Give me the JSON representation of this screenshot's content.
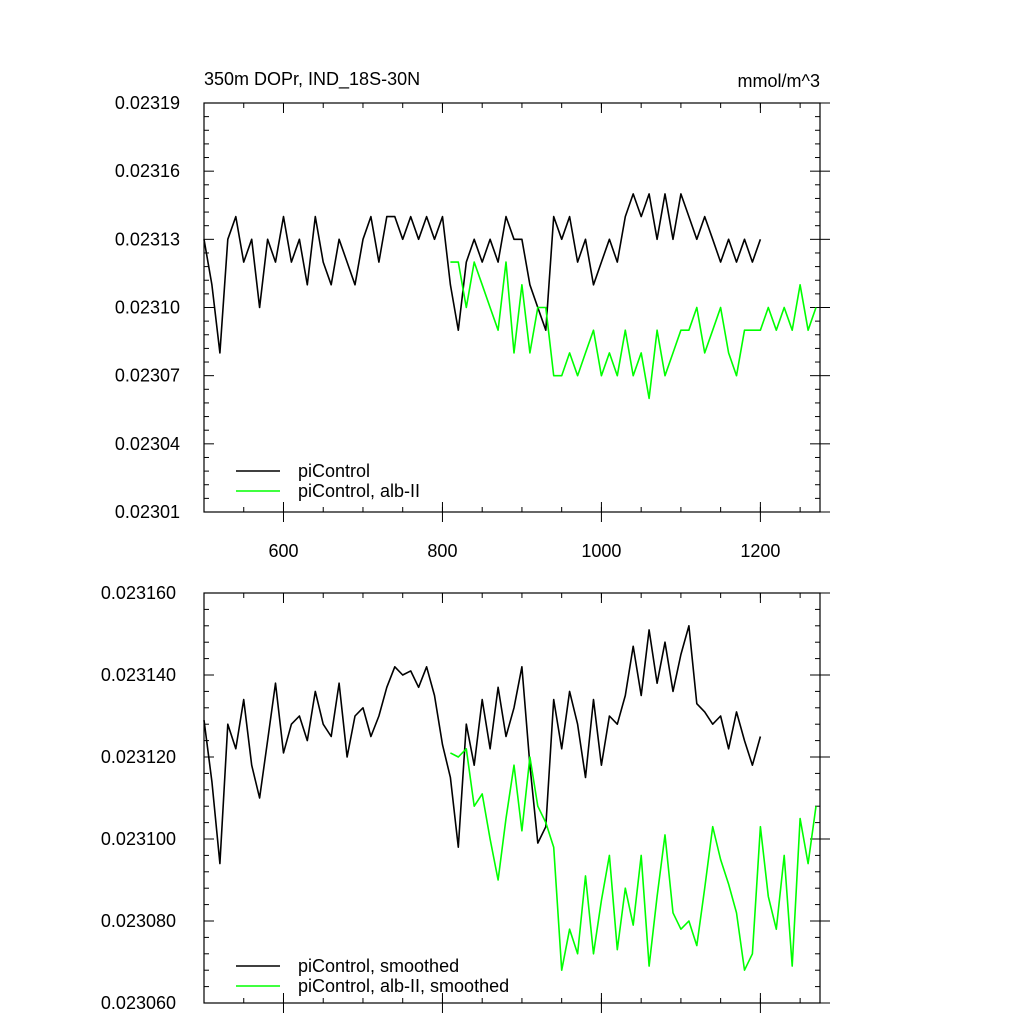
{
  "chart_data": [
    {
      "type": "line",
      "title": "350m DOPr, IND_18S-30N",
      "units": "mmol/m^3",
      "xlim": [
        500,
        1275
      ],
      "ylim": [
        0.02301,
        0.02319
      ],
      "x_ticks": [
        600,
        800,
        1000,
        1200
      ],
      "y_ticks": [
        0.02301,
        0.02304,
        0.02307,
        0.0231,
        0.02313,
        0.02316,
        0.02319
      ],
      "y_tick_labels": [
        "0.02301",
        "0.02304",
        "0.02307",
        "0.02310",
        "0.02313",
        "0.02316",
        "0.02319"
      ],
      "grid": false,
      "legend_position": "bottom-left",
      "series": [
        {
          "name": "piControl",
          "color": "#000000",
          "x": [
            500,
            510,
            520,
            530,
            540,
            550,
            560,
            570,
            580,
            590,
            600,
            610,
            620,
            630,
            640,
            650,
            660,
            670,
            680,
            690,
            700,
            710,
            720,
            730,
            740,
            750,
            760,
            770,
            780,
            790,
            800,
            810,
            820,
            830,
            840,
            850,
            860,
            870,
            880,
            890,
            900,
            910,
            920,
            930,
            940,
            950,
            960,
            970,
            980,
            990,
            1000,
            1010,
            1020,
            1030,
            1040,
            1050,
            1060,
            1070,
            1080,
            1090,
            1100,
            1110,
            1120,
            1130,
            1140,
            1150,
            1160,
            1170,
            1180,
            1190,
            1200
          ],
          "values": [
            0.02313,
            0.02311,
            0.02308,
            0.02313,
            0.02314,
            0.02312,
            0.02313,
            0.0231,
            0.02313,
            0.02312,
            0.02314,
            0.02312,
            0.02313,
            0.02311,
            0.02314,
            0.02312,
            0.02311,
            0.02313,
            0.02312,
            0.02311,
            0.02313,
            0.02314,
            0.02312,
            0.02314,
            0.02314,
            0.02313,
            0.02314,
            0.02313,
            0.02314,
            0.02313,
            0.02314,
            0.02311,
            0.02309,
            0.02312,
            0.02313,
            0.02312,
            0.02313,
            0.02312,
            0.02314,
            0.02313,
            0.02313,
            0.02311,
            0.0231,
            0.02309,
            0.02314,
            0.02313,
            0.02314,
            0.02312,
            0.02313,
            0.02311,
            0.02312,
            0.02313,
            0.02312,
            0.02314,
            0.02315,
            0.02314,
            0.02315,
            0.02313,
            0.02315,
            0.02313,
            0.02315,
            0.02314,
            0.02313,
            0.02314,
            0.02313,
            0.02312,
            0.02313,
            0.02312,
            0.02313,
            0.02312,
            0.02313
          ]
        },
        {
          "name": "piControl, alb-II",
          "color": "#00ff00",
          "x": [
            810,
            820,
            830,
            840,
            850,
            860,
            870,
            880,
            890,
            900,
            910,
            920,
            930,
            940,
            950,
            960,
            970,
            980,
            990,
            1000,
            1010,
            1020,
            1030,
            1040,
            1050,
            1060,
            1070,
            1080,
            1090,
            1100,
            1110,
            1120,
            1130,
            1140,
            1150,
            1160,
            1170,
            1180,
            1190,
            1200,
            1210,
            1220,
            1230,
            1240,
            1250,
            1260,
            1270
          ],
          "values": [
            0.02312,
            0.02312,
            0.0231,
            0.02312,
            0.02311,
            0.0231,
            0.02309,
            0.02312,
            0.02308,
            0.02311,
            0.02308,
            0.0231,
            0.0231,
            0.02307,
            0.02307,
            0.02308,
            0.02307,
            0.02308,
            0.02309,
            0.02307,
            0.02308,
            0.02307,
            0.02309,
            0.02307,
            0.02308,
            0.02306,
            0.02309,
            0.02307,
            0.02308,
            0.02309,
            0.02309,
            0.0231,
            0.02308,
            0.02309,
            0.0231,
            0.02308,
            0.02307,
            0.02309,
            0.02309,
            0.02309,
            0.0231,
            0.02309,
            0.0231,
            0.02309,
            0.02311,
            0.02309,
            0.0231
          ]
        }
      ]
    },
    {
      "type": "line",
      "xlim": [
        500,
        1275
      ],
      "ylim": [
        0.02306,
        0.02316
      ],
      "x_ticks": [
        600,
        800,
        1000,
        1200
      ],
      "y_ticks": [
        0.02306,
        0.02308,
        0.0231,
        0.02312,
        0.02314,
        0.02316
      ],
      "y_tick_labels": [
        "0.023060",
        "0.023080",
        "0.023100",
        "0.023120",
        "0.023140",
        "0.023160"
      ],
      "grid": false,
      "legend_position": "bottom-left",
      "series": [
        {
          "name": "piControl, smoothed",
          "color": "#000000",
          "x": [
            500,
            510,
            520,
            530,
            540,
            550,
            560,
            570,
            580,
            590,
            600,
            610,
            620,
            630,
            640,
            650,
            660,
            670,
            680,
            690,
            700,
            710,
            720,
            730,
            740,
            750,
            760,
            770,
            780,
            790,
            800,
            810,
            820,
            830,
            840,
            850,
            860,
            870,
            880,
            890,
            900,
            910,
            920,
            930,
            940,
            950,
            960,
            970,
            980,
            990,
            1000,
            1010,
            1020,
            1030,
            1040,
            1050,
            1060,
            1070,
            1080,
            1090,
            1100,
            1110,
            1120,
            1130,
            1140,
            1150,
            1160,
            1170,
            1180,
            1190,
            1200
          ],
          "values": [
            0.023129,
            0.023114,
            0.023094,
            0.023128,
            0.023122,
            0.023134,
            0.023118,
            0.02311,
            0.023124,
            0.023138,
            0.023121,
            0.023128,
            0.02313,
            0.023124,
            0.023136,
            0.023128,
            0.023125,
            0.023138,
            0.02312,
            0.02313,
            0.023132,
            0.023125,
            0.02313,
            0.023137,
            0.023142,
            0.02314,
            0.023141,
            0.023137,
            0.023142,
            0.023135,
            0.023123,
            0.023115,
            0.023098,
            0.023128,
            0.023118,
            0.023134,
            0.023122,
            0.023137,
            0.023125,
            0.023132,
            0.023142,
            0.023118,
            0.023099,
            0.023103,
            0.023134,
            0.023122,
            0.023136,
            0.023128,
            0.023115,
            0.023134,
            0.023118,
            0.02313,
            0.023128,
            0.023135,
            0.023147,
            0.023135,
            0.023151,
            0.023138,
            0.023148,
            0.023136,
            0.023145,
            0.023152,
            0.023133,
            0.023131,
            0.023128,
            0.02313,
            0.023122,
            0.023131,
            0.023124,
            0.023118,
            0.023125
          ]
        },
        {
          "name": "piControl, alb-II, smoothed",
          "color": "#00ff00",
          "x": [
            810,
            820,
            830,
            840,
            850,
            860,
            870,
            880,
            890,
            900,
            910,
            920,
            930,
            940,
            950,
            960,
            970,
            980,
            990,
            1000,
            1010,
            1020,
            1030,
            1040,
            1050,
            1060,
            1070,
            1080,
            1090,
            1100,
            1110,
            1120,
            1130,
            1140,
            1150,
            1160,
            1170,
            1180,
            1190,
            1200,
            1210,
            1220,
            1230,
            1240,
            1250,
            1260,
            1270
          ],
          "values": [
            0.023121,
            0.02312,
            0.023122,
            0.023108,
            0.023111,
            0.0231,
            0.02309,
            0.023105,
            0.023118,
            0.023102,
            0.02312,
            0.023108,
            0.023104,
            0.023098,
            0.023068,
            0.023078,
            0.023072,
            0.023091,
            0.023072,
            0.023085,
            0.023096,
            0.023073,
            0.023088,
            0.023079,
            0.023096,
            0.023069,
            0.023086,
            0.023101,
            0.023082,
            0.023078,
            0.02308,
            0.023074,
            0.023088,
            0.023103,
            0.023095,
            0.023089,
            0.023082,
            0.023068,
            0.023072,
            0.023103,
            0.023086,
            0.023078,
            0.023096,
            0.023069,
            0.023105,
            0.023094,
            0.023108
          ]
        }
      ]
    }
  ]
}
